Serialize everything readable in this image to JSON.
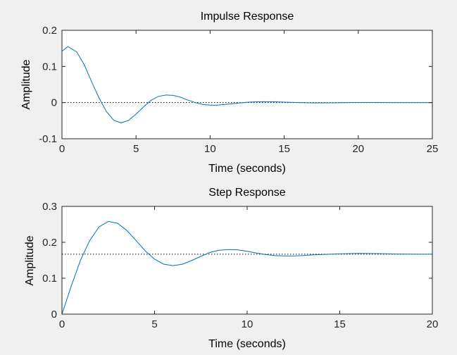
{
  "chart_data": [
    {
      "type": "line",
      "title": "Impulse Response",
      "xlabel": "Time (seconds)",
      "ylabel": "Amplitude",
      "xlim": [
        0,
        25
      ],
      "ylim": [
        -0.1,
        0.2
      ],
      "xticks": [
        0,
        5,
        10,
        15,
        20,
        25
      ],
      "yticks": [
        -0.1,
        0,
        0.1,
        0.2
      ],
      "xtick_labels": [
        "0",
        "5",
        "10",
        "15",
        "20",
        "25"
      ],
      "ytick_labels": [
        "-0.1",
        "0",
        "0.1",
        "0.2"
      ],
      "grid": false,
      "reference_line": 0,
      "series": [
        {
          "color": "#0072BD",
          "x": [
            0,
            0.4,
            1,
            1.5,
            2,
            2.5,
            3,
            3.5,
            4,
            4.5,
            5,
            5.5,
            6,
            6.5,
            7,
            7.5,
            8,
            8.5,
            9,
            9.5,
            10,
            10.5,
            11,
            11.5,
            12,
            12.5,
            13,
            13.5,
            14,
            14.5,
            15,
            16,
            17,
            18,
            19,
            20,
            21,
            22,
            23,
            24,
            25
          ],
          "y": [
            0.142,
            0.155,
            0.14,
            0.105,
            0.058,
            0.013,
            -0.025,
            -0.049,
            -0.056,
            -0.049,
            -0.032,
            -0.012,
            0.006,
            0.017,
            0.021,
            0.02,
            0.015,
            0.007,
            0.0,
            -0.005,
            -0.007,
            -0.007,
            -0.005,
            -0.003,
            -0.001,
            0.001,
            0.002,
            0.0025,
            0.0025,
            0.002,
            0.0012,
            0.0,
            -0.0008,
            -0.0007,
            -0.0002,
            0.0002,
            0.0003,
            0.0001,
            0.0,
            0.0,
            0.0
          ]
        }
      ]
    },
    {
      "type": "line",
      "title": "Step Response",
      "xlabel": "Time (seconds)",
      "ylabel": "Amplitude",
      "xlim": [
        0,
        20
      ],
      "ylim": [
        0,
        0.3
      ],
      "xticks": [
        0,
        5,
        10,
        15,
        20
      ],
      "yticks": [
        0,
        0.1,
        0.2,
        0.3
      ],
      "xtick_labels": [
        "0",
        "5",
        "10",
        "15",
        "20"
      ],
      "ytick_labels": [
        "0",
        "0.1",
        "0.2",
        "0.3"
      ],
      "grid": false,
      "reference_line": 0.167,
      "series": [
        {
          "color": "#0072BD",
          "x": [
            0,
            0.5,
            1,
            1.5,
            2,
            2.5,
            3,
            3.5,
            4,
            4.5,
            5,
            5.5,
            6,
            6.5,
            7,
            7.5,
            8,
            8.5,
            9,
            9.5,
            10,
            10.5,
            11,
            11.5,
            12,
            12.5,
            13,
            13.5,
            14,
            15,
            16,
            17,
            18,
            19,
            20
          ],
          "y": [
            0.0,
            0.078,
            0.15,
            0.205,
            0.243,
            0.258,
            0.253,
            0.233,
            0.205,
            0.176,
            0.153,
            0.139,
            0.135,
            0.139,
            0.149,
            0.161,
            0.172,
            0.178,
            0.18,
            0.179,
            0.175,
            0.17,
            0.166,
            0.163,
            0.162,
            0.162,
            0.163,
            0.165,
            0.166,
            0.168,
            0.169,
            0.1685,
            0.1675,
            0.167,
            0.167
          ]
        }
      ]
    }
  ]
}
